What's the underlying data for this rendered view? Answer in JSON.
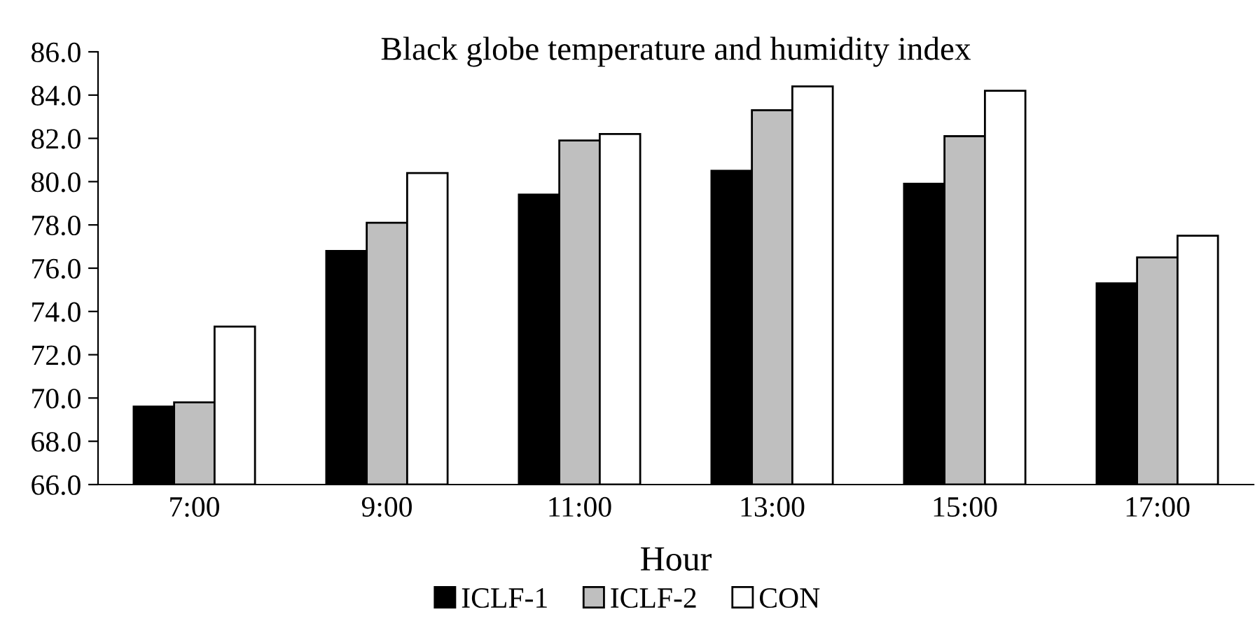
{
  "chart_data": {
    "type": "bar",
    "title": "Black globe temperature and humidity index",
    "xlabel": "Hour",
    "categories": [
      "7:00",
      "9:00",
      "11:00",
      "13:00",
      "15:00",
      "17:00"
    ],
    "series": [
      {
        "name": "ICLF-1",
        "color": "#000000",
        "values": [
          69.6,
          76.8,
          79.4,
          80.5,
          79.9,
          75.3
        ]
      },
      {
        "name": "ICLF-2",
        "color": "#bfbfbf",
        "values": [
          69.8,
          78.1,
          81.9,
          83.3,
          82.1,
          76.5
        ]
      },
      {
        "name": "CON",
        "color": "#ffffff",
        "values": [
          73.3,
          80.4,
          82.2,
          84.4,
          84.2,
          77.5
        ]
      }
    ],
    "ylim": [
      66,
      86
    ],
    "yticks": [
      {
        "value": 66,
        "label": "66.0"
      },
      {
        "value": 68,
        "label": "68.0"
      },
      {
        "value": 70,
        "label": "70.0"
      },
      {
        "value": 72,
        "label": "72.0"
      },
      {
        "value": 74,
        "label": "74.0"
      },
      {
        "value": 76,
        "label": "76.0"
      },
      {
        "value": 78,
        "label": "78.0"
      },
      {
        "value": 80,
        "label": "80.0"
      },
      {
        "value": 82,
        "label": "82.0"
      },
      {
        "value": 84,
        "label": "84.0"
      },
      {
        "value": 86,
        "label": "86.0"
      }
    ],
    "grid": false,
    "legend": "bottom"
  }
}
